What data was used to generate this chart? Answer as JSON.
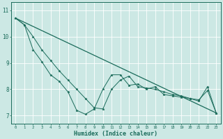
{
  "title": "",
  "xlabel": "Humidex (Indice chaleur)",
  "bg_color": "#cce8e4",
  "line_color": "#1a6b5a",
  "grid_color": "#ffffff",
  "xlim": [
    -0.5,
    23.5
  ],
  "ylim": [
    6.7,
    11.3
  ],
  "yticks": [
    7,
    8,
    9,
    10,
    11
  ],
  "xticks": [
    0,
    1,
    2,
    3,
    4,
    5,
    6,
    7,
    8,
    9,
    10,
    11,
    12,
    13,
    14,
    15,
    16,
    17,
    18,
    19,
    20,
    21,
    22,
    23
  ],
  "line1_x": [
    0,
    1,
    2,
    3,
    4,
    5,
    6,
    7,
    8,
    9,
    10,
    11,
    12,
    13,
    14,
    15,
    16,
    17,
    18,
    19,
    20,
    21,
    22,
    23
  ],
  "line1_y": [
    10.7,
    10.45,
    10.0,
    9.5,
    9.1,
    8.7,
    8.35,
    8.0,
    7.65,
    7.3,
    7.25,
    8.0,
    8.35,
    8.5,
    8.1,
    8.05,
    8.0,
    7.9,
    7.8,
    7.75,
    7.65,
    7.6,
    7.95,
    7.1
  ],
  "line2_x": [
    0,
    1,
    2,
    3,
    4,
    5,
    6,
    7,
    8,
    9,
    10,
    11,
    12,
    13,
    14,
    15,
    16,
    17,
    18,
    19,
    20,
    21,
    22,
    23
  ],
  "line2_y": [
    10.7,
    10.45,
    9.5,
    9.05,
    8.55,
    8.3,
    7.9,
    7.2,
    7.05,
    7.25,
    8.0,
    8.55,
    8.55,
    8.15,
    8.2,
    8.0,
    8.1,
    7.8,
    7.75,
    7.7,
    7.65,
    7.55,
    8.1,
    7.1
  ],
  "line3_x": [
    0,
    23
  ],
  "line3_y": [
    10.7,
    7.1
  ]
}
